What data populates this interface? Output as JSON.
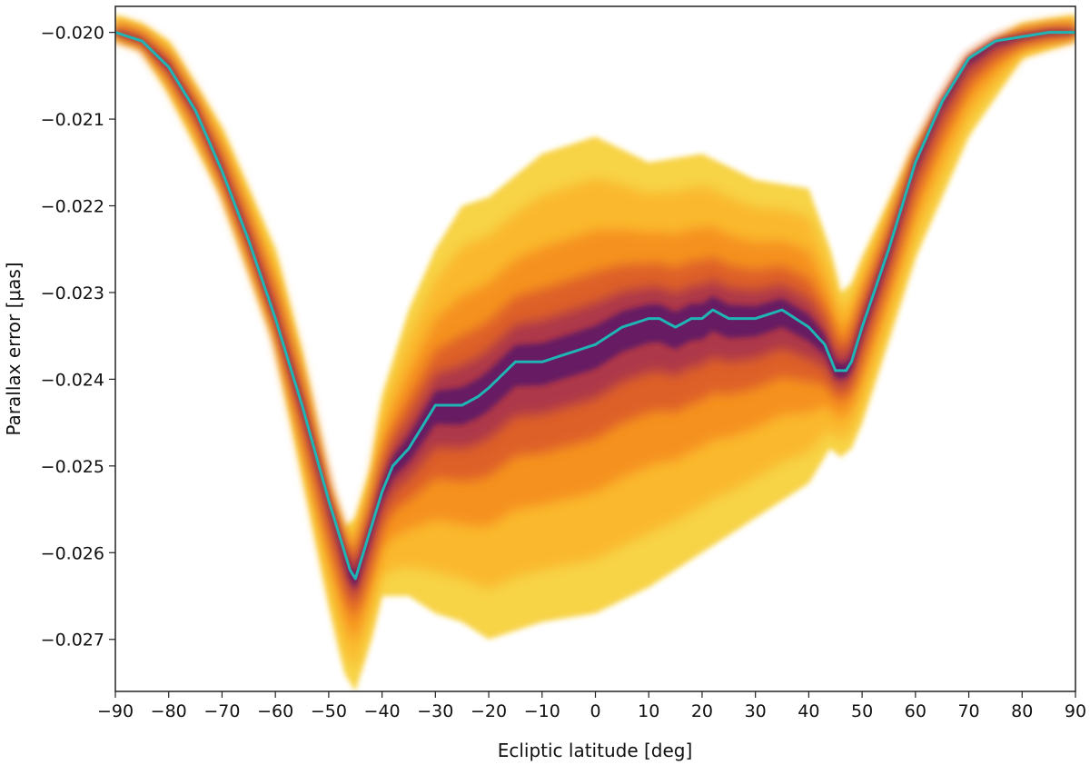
{
  "chart_data": {
    "type": "heatmap",
    "title": "",
    "xlabel": "Ecliptic latitude [deg]",
    "ylabel": "Parallax error [μas]",
    "xlim": [
      -90,
      90
    ],
    "ylim": [
      -0.0276,
      -0.0197
    ],
    "x_ticks": [
      -90,
      -80,
      -70,
      -60,
      -50,
      -40,
      -30,
      -20,
      -10,
      0,
      10,
      20,
      30,
      40,
      50,
      60,
      70,
      80,
      90
    ],
    "x_tick_labels": [
      "−90",
      "−80",
      "−70",
      "−60",
      "−50",
      "−40",
      "−30",
      "−20",
      "−10",
      "0",
      "10",
      "20",
      "30",
      "40",
      "50",
      "60",
      "70",
      "80",
      "90"
    ],
    "y_ticks": [
      -0.02,
      -0.021,
      -0.022,
      -0.023,
      -0.024,
      -0.025,
      -0.026,
      -0.027
    ],
    "y_tick_labels": [
      "−0.020",
      "−0.021",
      "−0.022",
      "−0.023",
      "−0.024",
      "−0.025",
      "−0.026",
      "−0.027"
    ],
    "grid": false,
    "colormap": "inferno (density, yellow = low, purple = high)",
    "median_line": {
      "color": "#1fb5b5",
      "x": [
        -90,
        -85,
        -80,
        -75,
        -70,
        -65,
        -60,
        -55,
        -50,
        -47,
        -46,
        -45,
        -44,
        -42,
        -40,
        -38,
        -35,
        -32,
        -30,
        -28,
        -25,
        -22,
        -20,
        -15,
        -10,
        -5,
        0,
        5,
        10,
        12,
        15,
        18,
        20,
        22,
        25,
        30,
        35,
        40,
        43,
        45,
        46,
        47,
        48,
        50,
        55,
        60,
        65,
        70,
        75,
        80,
        85,
        90
      ],
      "y": [
        -0.02,
        -0.0201,
        -0.0204,
        -0.0209,
        -0.0216,
        -0.0224,
        -0.0233,
        -0.0243,
        -0.0254,
        -0.026,
        -0.0262,
        -0.0263,
        -0.0261,
        -0.0257,
        -0.0253,
        -0.025,
        -0.0248,
        -0.0245,
        -0.0243,
        -0.0243,
        -0.0243,
        -0.0242,
        -0.0241,
        -0.0238,
        -0.0238,
        -0.0237,
        -0.0236,
        -0.0234,
        -0.0233,
        -0.0233,
        -0.0234,
        -0.0233,
        -0.0233,
        -0.0232,
        -0.0233,
        -0.0233,
        -0.0232,
        -0.0234,
        -0.0236,
        -0.0239,
        -0.0239,
        -0.0239,
        -0.0238,
        -0.0234,
        -0.0225,
        -0.0215,
        -0.0208,
        -0.0203,
        -0.0201,
        -0.02005,
        -0.02,
        -0.02
      ]
    },
    "band_upper": {
      "x": [
        -90,
        -85,
        -80,
        -70,
        -60,
        -55,
        -50,
        -47,
        -45,
        -42,
        -40,
        -35,
        -30,
        -25,
        -20,
        -10,
        0,
        10,
        20,
        30,
        40,
        44,
        46,
        48,
        50,
        60,
        70,
        80,
        90
      ],
      "y": [
        -0.0198,
        -0.0199,
        -0.0201,
        -0.0211,
        -0.0225,
        -0.0237,
        -0.0252,
        -0.0257,
        -0.0256,
        -0.025,
        -0.0242,
        -0.0232,
        -0.0225,
        -0.022,
        -0.0219,
        -0.0214,
        -0.0212,
        -0.0215,
        -0.0214,
        -0.0217,
        -0.0218,
        -0.0225,
        -0.023,
        -0.0229,
        -0.0226,
        -0.0213,
        -0.0203,
        -0.0199,
        -0.0198
      ]
    },
    "band_lower": {
      "x": [
        -90,
        -85,
        -80,
        -70,
        -60,
        -55,
        -50,
        -47,
        -45,
        -42,
        -40,
        -35,
        -30,
        -25,
        -20,
        -10,
        0,
        10,
        20,
        30,
        40,
        44,
        46,
        48,
        50,
        60,
        70,
        80,
        90
      ],
      "y": [
        -0.0201,
        -0.0202,
        -0.0207,
        -0.0219,
        -0.0236,
        -0.0251,
        -0.0266,
        -0.0274,
        -0.0276,
        -0.027,
        -0.0265,
        -0.0265,
        -0.0267,
        -0.0268,
        -0.027,
        -0.0268,
        -0.0267,
        -0.0264,
        -0.026,
        -0.0256,
        -0.0252,
        -0.0248,
        -0.0249,
        -0.0248,
        -0.0245,
        -0.0226,
        -0.0212,
        -0.0203,
        -0.0201
      ]
    }
  }
}
